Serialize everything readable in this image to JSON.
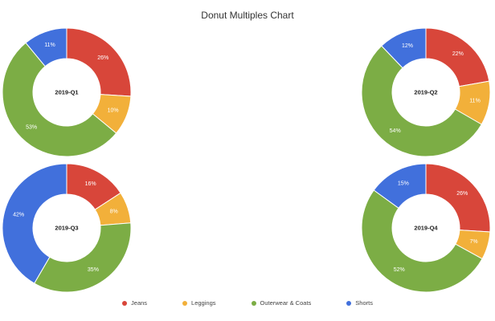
{
  "chart_data": {
    "type": "pie",
    "title": "Donut Multiples Chart",
    "categories": [
      "Jeans",
      "Leggings",
      "Outerwear & Coats",
      "Shorts"
    ],
    "colors": [
      "#d8463a",
      "#f2b03a",
      "#7cad45",
      "#4170dc"
    ],
    "legend_position": "bottom",
    "donuts": [
      {
        "label": "2019-Q1",
        "values": [
          26,
          10,
          53,
          11
        ],
        "value_labels": [
          "26%",
          "10%",
          "53%",
          "11%"
        ]
      },
      {
        "label": "2019-Q2",
        "values": [
          22,
          11,
          54,
          12
        ],
        "value_labels": [
          "22%",
          "11%",
          "54%",
          "12%"
        ]
      },
      {
        "label": "2019-Q3",
        "values": [
          16,
          8,
          35,
          42
        ],
        "value_labels": [
          "16%",
          "8%",
          "35%",
          "42%"
        ]
      },
      {
        "label": "2019-Q4",
        "values": [
          26,
          7,
          52,
          15
        ],
        "value_labels": [
          "26%",
          "7%",
          "52%",
          "15%"
        ]
      }
    ]
  }
}
